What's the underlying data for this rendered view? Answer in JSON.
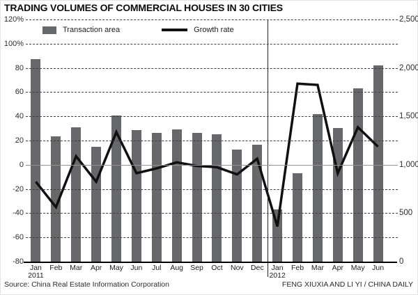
{
  "title": "TRADING VOLUMES OF COMMERCIAL HOUSES IN 30 CITIES",
  "footer": {
    "source": "Source: China Real Estate Information Corporation",
    "credit": "FENG XIUXIA AND LI YI / CHINA DAILY"
  },
  "colors": {
    "bar": "#67686c",
    "line": "#101010",
    "grid": "#3f3f3f",
    "zero_line": "#939393",
    "axis": "#000000"
  },
  "chart_data": {
    "type": "bar",
    "subtype": "bar-line-combo",
    "title": "TRADING VOLUMES OF COMMERCIAL HOUSES IN 30 CITIES",
    "categories": [
      "Jan",
      "Feb",
      "Mar",
      "Apr",
      "May",
      "Jun",
      "Jul",
      "Aug",
      "Sep",
      "Oct",
      "Nov",
      "Dec",
      "Jan",
      "Feb",
      "Mar",
      "Apr",
      "May",
      "Jun"
    ],
    "category_years": {
      "0": "2011",
      "12": "2012"
    },
    "series": [
      {
        "name": "Transaction area",
        "type": "bar",
        "axis": "right",
        "values": [
          2090,
          1290,
          1390,
          1185,
          1510,
          1360,
          1330,
          1365,
          1330,
          1315,
          1160,
          1210,
          540,
          910,
          1520,
          1380,
          1790,
          2025
        ]
      },
      {
        "name": "Growth rate",
        "type": "line",
        "axis": "left",
        "unit": "%",
        "values": [
          -14,
          -35,
          7,
          -14,
          27,
          -7,
          -3,
          2,
          -1,
          -2,
          -8,
          5,
          -51,
          67,
          66,
          -7,
          31,
          15
        ]
      }
    ],
    "left_axis": {
      "min": -80,
      "max": 120,
      "tick_labels": [
        "120%",
        "100%",
        "80",
        "60",
        "40",
        "20",
        "0",
        "-20",
        "-40",
        "-60",
        "-80"
      ]
    },
    "right_axis": {
      "min": 0,
      "max": 2500,
      "tick_labels": [
        "2,500",
        "2,000",
        "1,500",
        "1,000",
        "500",
        "0"
      ]
    },
    "grid": true,
    "legend_position": "top-left",
    "separator_after_index": 11
  }
}
